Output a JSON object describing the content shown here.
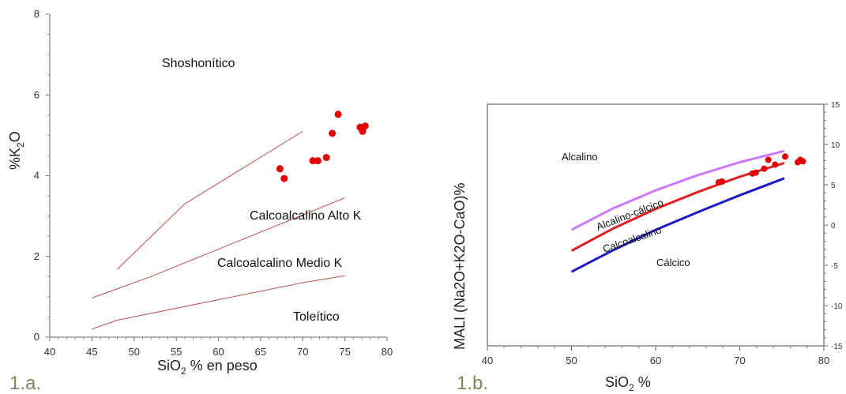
{
  "chart_data": [
    {
      "panel_label": "1.a.",
      "type": "scatter",
      "xlabel_main": "SiO",
      "xlabel_sub": "2",
      "xlabel_rest": " % en peso",
      "ylabel_main": "%K",
      "ylabel_sub": "2",
      "ylabel_rest": "O",
      "xlim": [
        40,
        80
      ],
      "ylim": [
        0,
        8
      ],
      "xticks": [
        "40",
        "45",
        "50",
        "55",
        "60",
        "65",
        "70",
        "75",
        "80"
      ],
      "yticks": [
        "0",
        "2",
        "4",
        "6",
        "8"
      ],
      "fields": [
        "Shoshonítico",
        "Calcoalcalino Alto K",
        "Calcoalcalino Medio K",
        "Toleítico"
      ],
      "lines": [
        {
          "x": [
            48,
            56,
            70
          ],
          "y": [
            1.68,
            3.3,
            5.1
          ]
        },
        {
          "x": [
            45,
            52,
            75
          ],
          "y": [
            0.97,
            1.5,
            3.45
          ]
        },
        {
          "x": [
            45,
            48,
            70,
            75
          ],
          "y": [
            0.2,
            0.42,
            1.35,
            1.52
          ]
        }
      ],
      "line_color": "#c0504d",
      "point_color": "#e00000",
      "points": [
        {
          "x": 67.3,
          "y": 4.17
        },
        {
          "x": 67.8,
          "y": 3.93
        },
        {
          "x": 71.2,
          "y": 4.37
        },
        {
          "x": 71.8,
          "y": 4.37
        },
        {
          "x": 72.8,
          "y": 4.45
        },
        {
          "x": 73.5,
          "y": 5.05
        },
        {
          "x": 74.2,
          "y": 5.52
        },
        {
          "x": 76.8,
          "y": 5.2
        },
        {
          "x": 77.1,
          "y": 5.1
        },
        {
          "x": 77.4,
          "y": 5.23
        }
      ]
    },
    {
      "panel_label": "1.b.",
      "type": "line",
      "xlabel_main": "SiO",
      "xlabel_sub": "2",
      "xlabel_rest": " %",
      "ylabel_text": "MALI (Na2O+K2O-CaO)%",
      "xlim": [
        40,
        80
      ],
      "ylim": [
        -15,
        15
      ],
      "xticks": [
        "40",
        "50",
        "60",
        "70",
        "80"
      ],
      "yticks": [
        "-15",
        "-10",
        "-5",
        "0",
        "5",
        "10",
        "15"
      ],
      "fields": [
        "Alcalino",
        "Alcalino-cálcico",
        "Calcoalcalino",
        "Cálcico"
      ],
      "series": [
        {
          "color": "#cc77ff",
          "x": [
            50,
            55,
            60,
            65,
            70,
            75.3
          ],
          "y": [
            -0.6,
            2.1,
            4.3,
            6.2,
            7.8,
            9.2
          ]
        },
        {
          "color": "#e02020",
          "x": [
            50,
            55,
            60,
            65,
            70,
            75.3
          ],
          "y": [
            -3.2,
            -0.4,
            2.0,
            4.1,
            6.0,
            7.7
          ]
        },
        {
          "color": "#1a1acc",
          "x": [
            50,
            55,
            60,
            65,
            70,
            75.3
          ],
          "y": [
            -5.8,
            -3.1,
            -0.6,
            1.6,
            3.7,
            5.8
          ]
        }
      ],
      "point_color": "#e00000",
      "points": [
        {
          "x": 67.5,
          "y": 5.3
        },
        {
          "x": 67.9,
          "y": 5.4
        },
        {
          "x": 71.5,
          "y": 6.4
        },
        {
          "x": 71.9,
          "y": 6.5
        },
        {
          "x": 72.9,
          "y": 7.0
        },
        {
          "x": 73.4,
          "y": 8.1
        },
        {
          "x": 74.2,
          "y": 7.5
        },
        {
          "x": 75.4,
          "y": 8.5
        },
        {
          "x": 76.9,
          "y": 7.8
        },
        {
          "x": 77.2,
          "y": 8.1
        },
        {
          "x": 77.5,
          "y": 7.9
        }
      ]
    }
  ]
}
